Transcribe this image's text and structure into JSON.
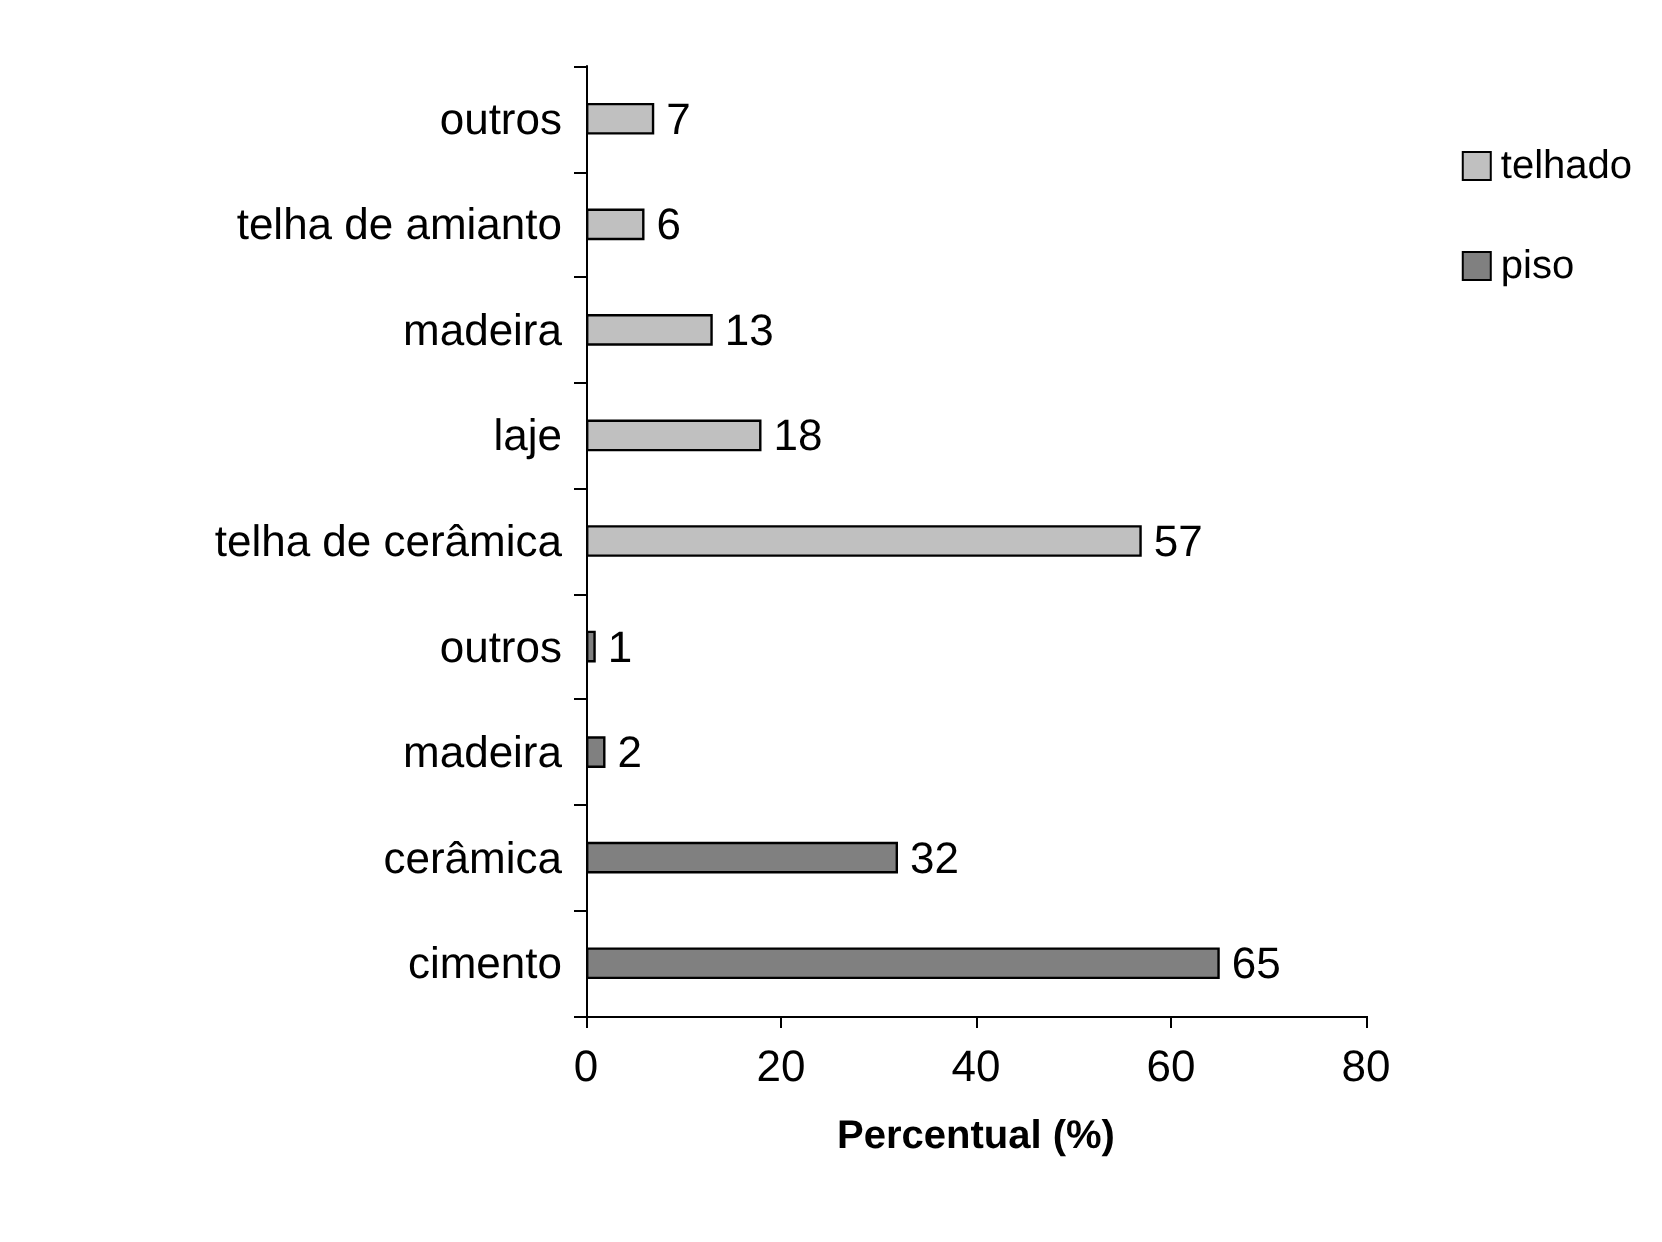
{
  "chart_data": {
    "type": "bar",
    "orientation": "horizontal",
    "stacked": true,
    "xlabel": "Percentual (%)",
    "categories": [
      "outros",
      "telha de amianto",
      "madeira",
      "laje",
      "telha de cerâmica",
      "outros",
      "madeira",
      "cerâmica",
      "cimento"
    ],
    "series": [
      {
        "name": "telhado",
        "color": "#c0c0c0",
        "values": [
          7,
          6,
          13,
          18,
          57,
          null,
          null,
          null,
          null
        ]
      },
      {
        "name": "piso",
        "color": "#808080",
        "values": [
          null,
          null,
          null,
          null,
          null,
          1,
          2,
          32,
          65
        ]
      }
    ],
    "xlim": [
      0,
      80
    ],
    "xticks": [
      0,
      20,
      40,
      60,
      80
    ],
    "grid": false,
    "legend": "right",
    "data_labels": true
  }
}
